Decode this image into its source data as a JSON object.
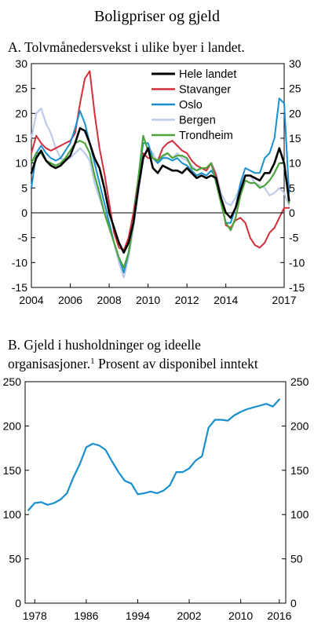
{
  "figure": {
    "title": "Boligpriser og gjeld"
  },
  "chart_data": [
    {
      "type": "line",
      "title": "A. Tolvmånedersvekst i ulike byer i landet.",
      "xlabel": "",
      "ylabel": "",
      "xlim": [
        2004,
        2017
      ],
      "ylim": [
        -15,
        30
      ],
      "yticks": [
        -15,
        -10,
        -5,
        0,
        5,
        10,
        15,
        20,
        25,
        30
      ],
      "xticks": [
        2004,
        2006,
        2008,
        2010,
        2012,
        2014,
        2017
      ],
      "legend_position": "top-right",
      "grid": false,
      "series": [
        {
          "name": "Hele landet",
          "color": "#000000",
          "x": [
            2004.0,
            2004.25,
            2004.5,
            2004.75,
            2005.0,
            2005.25,
            2005.5,
            2005.75,
            2006.0,
            2006.25,
            2006.5,
            2006.75,
            2007.0,
            2007.25,
            2007.5,
            2007.75,
            2008.0,
            2008.25,
            2008.5,
            2008.75,
            2009.0,
            2009.25,
            2009.5,
            2009.75,
            2010.0,
            2010.25,
            2010.5,
            2010.75,
            2011.0,
            2011.25,
            2011.5,
            2011.75,
            2012.0,
            2012.25,
            2012.5,
            2012.75,
            2013.0,
            2013.25,
            2013.5,
            2013.75,
            2014.0,
            2014.25,
            2014.5,
            2014.75,
            2015.0,
            2015.25,
            2015.5,
            2015.75,
            2016.0,
            2016.25,
            2016.5,
            2016.75,
            2017.0,
            2017.25
          ],
          "y": [
            8,
            11,
            12.5,
            10.5,
            9.5,
            9,
            9.5,
            10.5,
            11.5,
            14,
            17,
            16.5,
            14,
            11,
            9,
            5,
            0,
            -3,
            -6,
            -8,
            -6,
            -2,
            5,
            11,
            13,
            9,
            8,
            9.5,
            9,
            8.5,
            8.5,
            8,
            9,
            8,
            7,
            7.5,
            7,
            7.5,
            7,
            3,
            0,
            -1,
            1,
            4.5,
            7.5,
            7.5,
            7,
            6.5,
            8,
            8,
            10,
            13,
            10,
            2.5
          ]
        },
        {
          "name": "Stavanger",
          "color": "#d32f3a",
          "x": [
            2004.0,
            2004.25,
            2004.5,
            2004.75,
            2005.0,
            2005.25,
            2005.5,
            2005.75,
            2006.0,
            2006.25,
            2006.5,
            2006.75,
            2007.0,
            2007.25,
            2007.5,
            2007.75,
            2008.0,
            2008.25,
            2008.5,
            2008.75,
            2009.0,
            2009.25,
            2009.5,
            2009.75,
            2010.0,
            2010.25,
            2010.5,
            2010.75,
            2011.0,
            2011.25,
            2011.5,
            2011.75,
            2012.0,
            2012.25,
            2012.5,
            2012.75,
            2013.0,
            2013.25,
            2013.5,
            2013.75,
            2014.0,
            2014.25,
            2014.5,
            2014.75,
            2015.0,
            2015.25,
            2015.5,
            2015.75,
            2016.0,
            2016.25,
            2016.5,
            2016.75,
            2017.0,
            2017.25
          ],
          "y": [
            12,
            15.5,
            14,
            13,
            12.5,
            13,
            13.5,
            14,
            14.5,
            16,
            22,
            27,
            28.5,
            20,
            13,
            8,
            2,
            -4,
            -7,
            -7.5,
            -5,
            0,
            7,
            12,
            11,
            11,
            10.5,
            13,
            14,
            14.5,
            13.5,
            12.5,
            12,
            10.5,
            9.5,
            9,
            8.5,
            10,
            7.5,
            3,
            -2.5,
            -3,
            -1.5,
            -1,
            -2,
            -5,
            -6.5,
            -7,
            -6,
            -4,
            -3,
            -1,
            1,
            1
          ]
        },
        {
          "name": "Oslo",
          "color": "#1a8fd0",
          "x": [
            2004.0,
            2004.25,
            2004.5,
            2004.75,
            2005.0,
            2005.25,
            2005.5,
            2005.75,
            2006.0,
            2006.25,
            2006.5,
            2006.75,
            2007.0,
            2007.25,
            2007.5,
            2007.75,
            2008.0,
            2008.25,
            2008.5,
            2008.75,
            2009.0,
            2009.25,
            2009.5,
            2009.75,
            2010.0,
            2010.25,
            2010.5,
            2010.75,
            2011.0,
            2011.25,
            2011.5,
            2011.75,
            2012.0,
            2012.25,
            2012.5,
            2012.75,
            2013.0,
            2013.25,
            2013.5,
            2013.75,
            2014.0,
            2014.25,
            2014.5,
            2014.75,
            2015.0,
            2015.25,
            2015.5,
            2015.75,
            2016.0,
            2016.25,
            2016.5,
            2016.75,
            2017.0,
            2017.25
          ],
          "y": [
            5,
            12,
            13.5,
            12,
            11,
            10.5,
            11,
            12.5,
            14,
            17,
            20.5,
            18,
            14,
            10,
            6,
            2,
            -2,
            -6,
            -9,
            -12,
            -8,
            -2,
            7,
            14,
            14,
            11,
            10,
            11,
            11,
            10.5,
            11,
            10,
            9.5,
            8.5,
            7.5,
            8,
            7.5,
            8.5,
            7,
            2,
            -2,
            -2,
            1,
            6,
            9,
            8.5,
            8,
            8,
            11,
            12,
            15,
            23,
            22,
            4
          ]
        },
        {
          "name": "Bergen",
          "color": "#bccbe8",
          "x": [
            2004.0,
            2004.25,
            2004.5,
            2004.75,
            2005.0,
            2005.25,
            2005.5,
            2005.75,
            2006.0,
            2006.25,
            2006.5,
            2006.75,
            2007.0,
            2007.25,
            2007.5,
            2007.75,
            2008.0,
            2008.25,
            2008.5,
            2008.75,
            2009.0,
            2009.25,
            2009.5,
            2009.75,
            2010.0,
            2010.25,
            2010.5,
            2010.75,
            2011.0,
            2011.25,
            2011.5,
            2011.75,
            2012.0,
            2012.25,
            2012.5,
            2012.75,
            2013.0,
            2013.25,
            2013.5,
            2013.75,
            2014.0,
            2014.25,
            2014.5,
            2014.75,
            2015.0,
            2015.25,
            2015.5,
            2015.75,
            2016.0,
            2016.25,
            2016.5,
            2016.75,
            2017.0,
            2017.25
          ],
          "y": [
            15,
            20,
            21,
            18,
            16,
            13,
            11,
            10.5,
            11,
            12,
            13,
            12,
            10.5,
            6,
            3,
            0,
            -2,
            -6,
            -10,
            -13,
            -9,
            -3,
            4,
            11,
            13,
            12,
            10,
            11,
            12,
            11,
            12,
            11,
            10.5,
            9.5,
            8.5,
            9,
            8.5,
            10,
            8,
            4,
            2,
            1.5,
            3,
            5.5,
            7.5,
            7.5,
            6,
            5.5,
            5,
            3.5,
            4,
            5,
            4,
            1.5
          ]
        },
        {
          "name": "Trondheim",
          "color": "#4ca33c",
          "x": [
            2004.0,
            2004.25,
            2004.5,
            2004.75,
            2005.0,
            2005.25,
            2005.5,
            2005.75,
            2006.0,
            2006.25,
            2006.5,
            2006.75,
            2007.0,
            2007.25,
            2007.5,
            2007.75,
            2008.0,
            2008.25,
            2008.5,
            2008.75,
            2009.0,
            2009.25,
            2009.5,
            2009.75,
            2010.0,
            2010.25,
            2010.5,
            2010.75,
            2011.0,
            2011.25,
            2011.5,
            2011.75,
            2012.0,
            2012.25,
            2012.5,
            2012.75,
            2013.0,
            2013.25,
            2013.5,
            2013.75,
            2014.0,
            2014.25,
            2014.5,
            2014.75,
            2015.0,
            2015.25,
            2015.5,
            2015.75,
            2016.0,
            2016.25,
            2016.5,
            2016.75,
            2017.0,
            2017.25
          ],
          "y": [
            10,
            12,
            12,
            10.5,
            10,
            9.5,
            10,
            11,
            12.5,
            14,
            14.5,
            14,
            12,
            7.5,
            4,
            0,
            -3,
            -6,
            -9,
            -11,
            -8,
            -2,
            7,
            15.5,
            12.5,
            11,
            10.5,
            11.5,
            12,
            11,
            11.5,
            11.5,
            11,
            9,
            8.5,
            9,
            9,
            10,
            6,
            2,
            -2,
            -3.5,
            -1,
            3.5,
            6.5,
            6,
            6,
            5,
            5.5,
            6.5,
            8,
            10,
            10,
            2
          ]
        }
      ]
    },
    {
      "type": "line",
      "title": "B. Gjeld i husholdninger og ideelle organisasjoner.",
      "title_line1": "B. Gjeld i husholdninger og ideelle",
      "title_line2_pre": "organisasjoner.",
      "footnote_marker": "1",
      "title_line2_post": " Prosent av disponibel inntekt",
      "xlabel": "",
      "ylabel": "",
      "xlim": [
        1976.5,
        2017
      ],
      "ylim": [
        0,
        250
      ],
      "yticks": [
        0,
        50,
        100,
        150,
        200,
        250
      ],
      "xticks": [
        1978,
        1986,
        1994,
        2002,
        2010,
        2016
      ],
      "grid": false,
      "series": [
        {
          "name": "",
          "color": "#1a8fd0",
          "x": [
            1977,
            1978,
            1979,
            1980,
            1981,
            1982,
            1983,
            1984,
            1985,
            1986,
            1987,
            1988,
            1989,
            1990,
            1991,
            1992,
            1993,
            1994,
            1995,
            1996,
            1997,
            1998,
            1999,
            2000,
            2001,
            2002,
            2003,
            2004,
            2005,
            2006,
            2007,
            2008,
            2009,
            2010,
            2011,
            2012,
            2013,
            2014,
            2015,
            2016
          ],
          "y": [
            105,
            113,
            114,
            111,
            113,
            117,
            124,
            142,
            157,
            176,
            180,
            178,
            173,
            160,
            148,
            138,
            135,
            123,
            124,
            126,
            124,
            127,
            133,
            148,
            148,
            152,
            161,
            166,
            198,
            207,
            207,
            206,
            212,
            216,
            219,
            221,
            223,
            225,
            222,
            230
          ]
        }
      ]
    }
  ]
}
